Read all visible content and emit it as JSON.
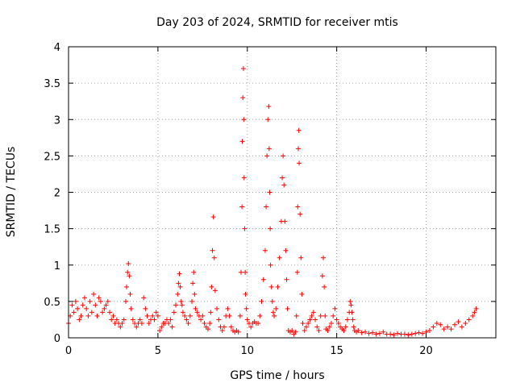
{
  "chart_data": {
    "type": "scatter",
    "title": "Day 203 of 2024, SRMTID for receiver mtis",
    "xlabel": "GPS time / hours",
    "ylabel": "SRMTID / TECUs",
    "xlim": [
      0,
      23.9
    ],
    "ylim": [
      0,
      4
    ],
    "xticks": [
      0,
      5,
      10,
      15,
      20
    ],
    "xtick_labels": [
      "0",
      "5",
      "10",
      "15",
      "20"
    ],
    "yticks": [
      0,
      0.5,
      1,
      1.5,
      2,
      2.5,
      3,
      3.5,
      4
    ],
    "ytick_labels": [
      "0",
      "0.5",
      "1",
      "1.5",
      "2",
      "2.5",
      "3",
      "3.5",
      "4"
    ],
    "grid": true,
    "marker": "+",
    "color": "#ff0000",
    "series": [
      {
        "name": "SRMTID",
        "x": [
          0.0,
          0.1,
          0.2,
          0.3,
          0.4,
          0.5,
          0.6,
          0.7,
          0.8,
          0.9,
          1.0,
          1.1,
          1.2,
          1.3,
          1.4,
          1.5,
          1.6,
          1.7,
          1.8,
          1.9,
          2.0,
          2.1,
          2.2,
          2.3,
          2.4,
          2.5,
          2.6,
          2.7,
          2.8,
          2.9,
          3.0,
          3.1,
          3.2,
          3.25,
          3.3,
          3.35,
          3.4,
          3.45,
          3.5,
          3.6,
          3.7,
          3.8,
          3.9,
          4.0,
          4.1,
          4.2,
          4.3,
          4.4,
          4.5,
          4.6,
          4.7,
          4.8,
          4.9,
          5.0,
          5.1,
          5.2,
          5.3,
          5.4,
          5.5,
          5.6,
          5.7,
          5.8,
          5.9,
          6.0,
          6.1,
          6.15,
          6.2,
          6.25,
          6.3,
          6.35,
          6.4,
          6.5,
          6.6,
          6.7,
          6.8,
          6.9,
          6.95,
          7.0,
          7.05,
          7.1,
          7.2,
          7.3,
          7.4,
          7.5,
          7.6,
          7.7,
          7.8,
          7.9,
          7.95,
          8.0,
          8.05,
          8.1,
          8.15,
          8.2,
          8.3,
          8.4,
          8.5,
          8.6,
          8.7,
          8.8,
          8.9,
          9.0,
          9.1,
          9.2,
          9.3,
          9.4,
          9.5,
          9.6,
          9.65,
          9.7,
          9.72,
          9.75,
          9.78,
          9.8,
          9.82,
          9.85,
          9.88,
          9.9,
          9.95,
          10.0,
          10.1,
          10.2,
          10.3,
          10.4,
          10.5,
          10.6,
          10.7,
          10.8,
          10.9,
          11.0,
          11.05,
          11.1,
          11.15,
          11.2,
          11.22,
          11.25,
          11.28,
          11.3,
          11.35,
          11.4,
          11.45,
          11.5,
          11.6,
          11.7,
          11.8,
          11.9,
          11.95,
          12.0,
          12.05,
          12.1,
          12.15,
          12.2,
          12.25,
          12.3,
          12.4,
          12.5,
          12.6,
          12.7,
          12.75,
          12.8,
          12.82,
          12.85,
          12.88,
          12.9,
          12.95,
          13.0,
          13.05,
          13.1,
          13.2,
          13.3,
          13.4,
          13.5,
          13.6,
          13.7,
          13.8,
          13.9,
          14.0,
          14.1,
          14.2,
          14.25,
          14.3,
          14.35,
          14.4,
          14.5,
          14.6,
          14.7,
          14.8,
          14.9,
          15.0,
          15.1,
          15.2,
          15.3,
          15.4,
          15.5,
          15.6,
          15.7,
          15.75,
          15.8,
          15.85,
          15.9,
          15.95,
          16.0,
          16.1,
          16.2,
          16.4,
          16.6,
          16.8,
          17.0,
          17.2,
          17.4,
          17.6,
          17.8,
          18.0,
          18.2,
          18.4,
          18.6,
          18.8,
          19.0,
          19.2,
          19.4,
          19.6,
          19.8,
          20.0,
          20.2,
          20.4,
          20.6,
          20.8,
          21.0,
          21.2,
          21.4,
          21.6,
          21.8,
          22.0,
          22.2,
          22.4,
          22.6,
          22.7,
          22.8
        ],
        "y": [
          0.2,
          0.3,
          0.45,
          0.35,
          0.5,
          0.4,
          0.25,
          0.3,
          0.45,
          0.55,
          0.4,
          0.3,
          0.5,
          0.35,
          0.6,
          0.45,
          0.3,
          0.55,
          0.5,
          0.35,
          0.4,
          0.45,
          0.5,
          0.35,
          0.25,
          0.3,
          0.2,
          0.25,
          0.2,
          0.15,
          0.2,
          0.25,
          0.5,
          0.7,
          0.9,
          1.02,
          0.85,
          0.6,
          0.4,
          0.25,
          0.2,
          0.15,
          0.2,
          0.25,
          0.2,
          0.55,
          0.4,
          0.3,
          0.2,
          0.25,
          0.3,
          0.25,
          0.35,
          0.3,
          0.1,
          0.15,
          0.2,
          0.2,
          0.25,
          0.2,
          0.25,
          0.15,
          0.35,
          0.45,
          0.6,
          0.75,
          0.88,
          0.7,
          0.5,
          0.45,
          0.35,
          0.3,
          0.25,
          0.2,
          0.3,
          0.5,
          0.75,
          0.9,
          0.6,
          0.4,
          0.35,
          0.3,
          0.25,
          0.3,
          0.2,
          0.15,
          0.12,
          0.2,
          0.35,
          0.7,
          1.2,
          1.66,
          1.1,
          0.65,
          0.4,
          0.25,
          0.15,
          0.1,
          0.15,
          0.3,
          0.4,
          0.3,
          0.15,
          0.1,
          0.08,
          0.1,
          0.08,
          0.3,
          0.9,
          1.8,
          2.7,
          3.3,
          3.7,
          3.0,
          2.2,
          1.5,
          0.9,
          0.6,
          0.4,
          0.25,
          0.2,
          0.15,
          0.2,
          0.22,
          0.2,
          0.2,
          0.3,
          0.5,
          0.8,
          1.2,
          1.8,
          2.5,
          3.0,
          3.18,
          2.6,
          2.0,
          1.5,
          1.0,
          0.7,
          0.5,
          0.35,
          0.3,
          0.4,
          0.7,
          1.1,
          1.6,
          2.2,
          2.5,
          2.1,
          1.6,
          1.2,
          0.8,
          0.4,
          0.1,
          0.08,
          0.1,
          0.05,
          0.08,
          0.3,
          0.9,
          1.8,
          2.6,
          2.85,
          2.4,
          1.7,
          1.1,
          0.6,
          0.2,
          0.1,
          0.15,
          0.2,
          0.25,
          0.3,
          0.35,
          0.25,
          0.15,
          0.1,
          0.3,
          0.85,
          1.1,
          0.7,
          0.3,
          0.12,
          0.1,
          0.15,
          0.2,
          0.3,
          0.4,
          0.25,
          0.2,
          0.15,
          0.12,
          0.1,
          0.15,
          0.25,
          0.35,
          0.5,
          0.45,
          0.35,
          0.25,
          0.15,
          0.1,
          0.08,
          0.1,
          0.07,
          0.08,
          0.06,
          0.07,
          0.05,
          0.06,
          0.08,
          0.05,
          0.05,
          0.04,
          0.06,
          0.05,
          0.05,
          0.04,
          0.05,
          0.06,
          0.07,
          0.06,
          0.08,
          0.1,
          0.15,
          0.2,
          0.18,
          0.12,
          0.15,
          0.12,
          0.18,
          0.22,
          0.15,
          0.2,
          0.25,
          0.3,
          0.35,
          0.4
        ]
      }
    ]
  }
}
